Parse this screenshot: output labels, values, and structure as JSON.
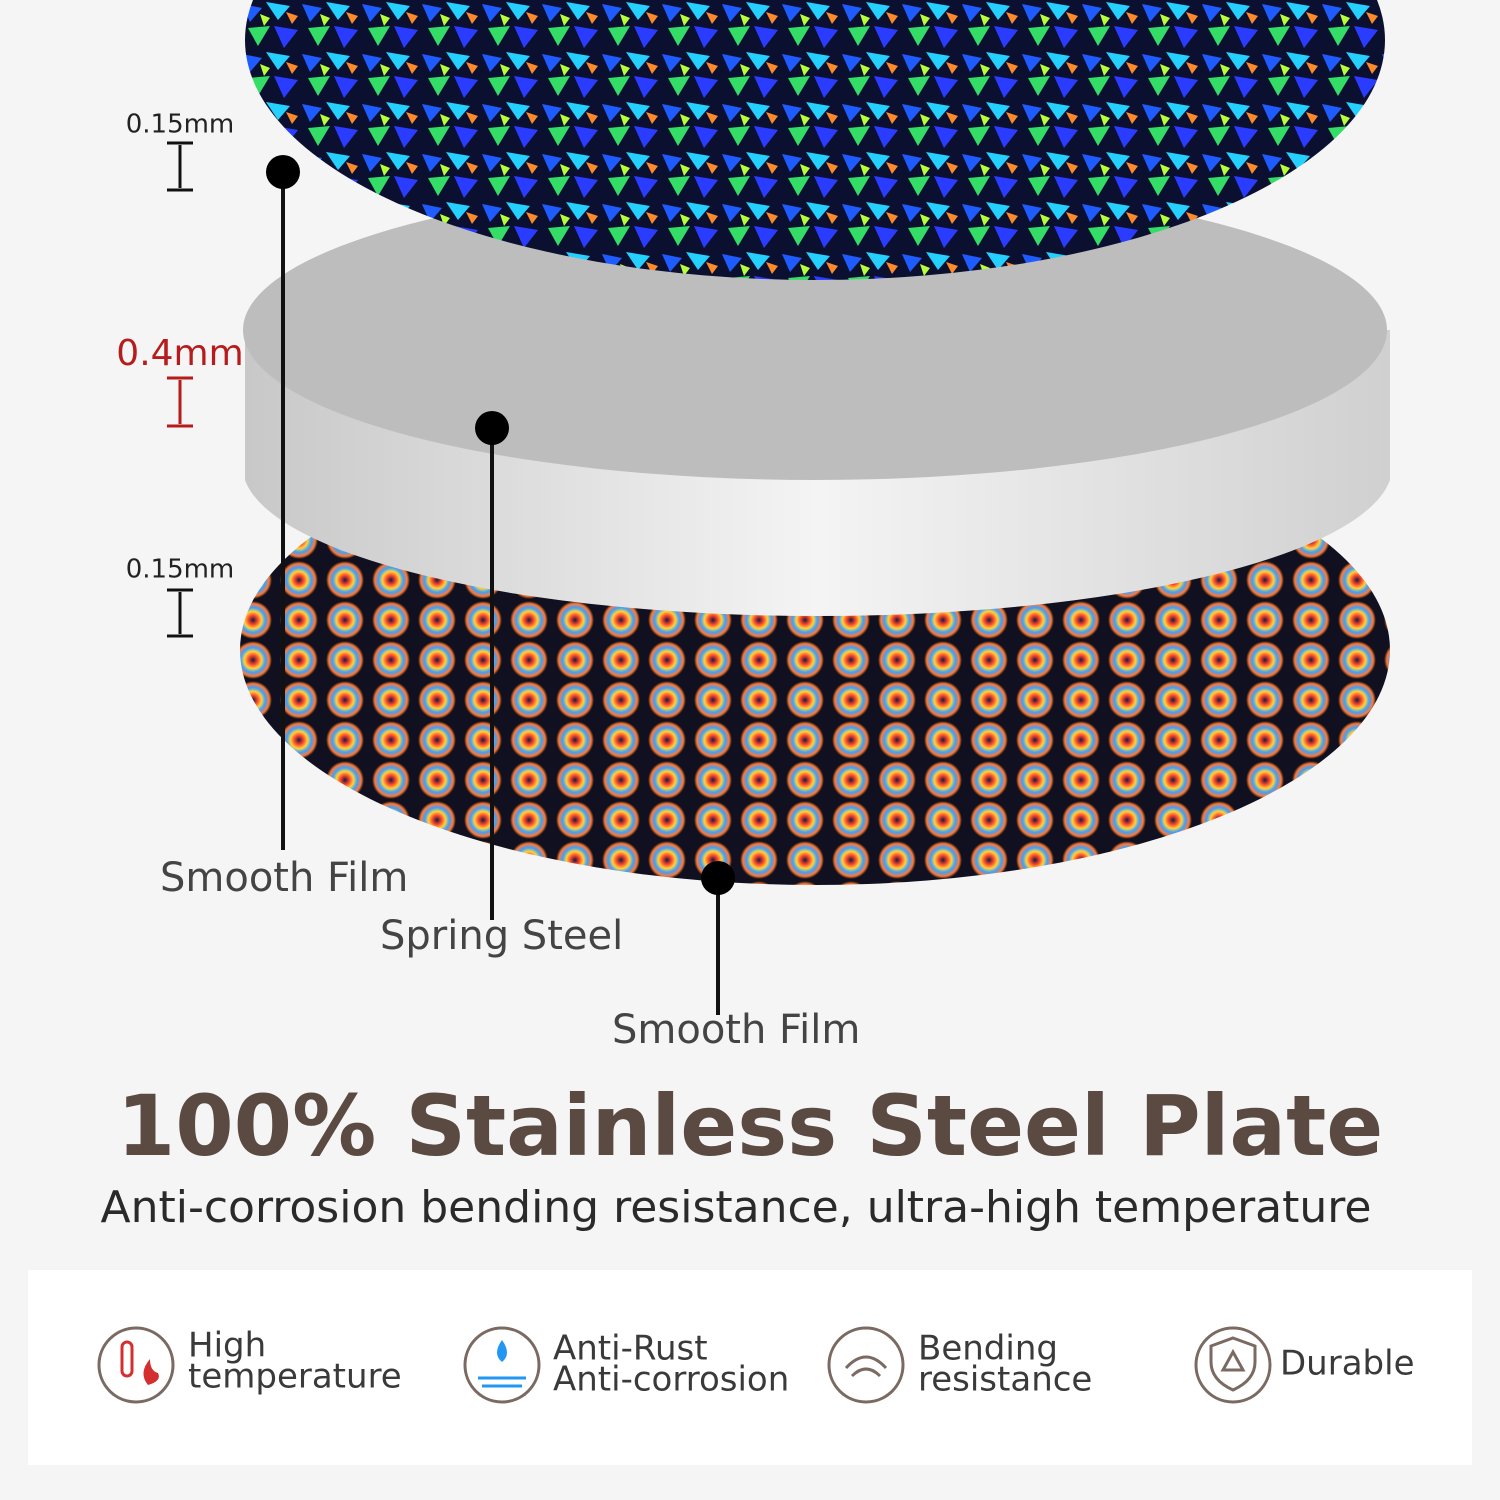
{
  "dimensions": {
    "top_film": "0.15mm",
    "steel": "0.4mm",
    "bottom_film": "0.15mm"
  },
  "callouts": {
    "top": "Smooth Film",
    "middle": "Spring Steel",
    "bottom": "Smooth Film"
  },
  "header": {
    "title": "100% Stainless Steel Plate",
    "subtitle": "Anti-corrosion bending resistance, ultra-high temperature"
  },
  "features": [
    {
      "line1": "High",
      "line2": "temperature"
    },
    {
      "line1": "Anti-Rust",
      "line2": "Anti-corrosion"
    },
    {
      "line1": "Bending",
      "line2": "resistance"
    },
    {
      "line1": "Durable"
    }
  ]
}
